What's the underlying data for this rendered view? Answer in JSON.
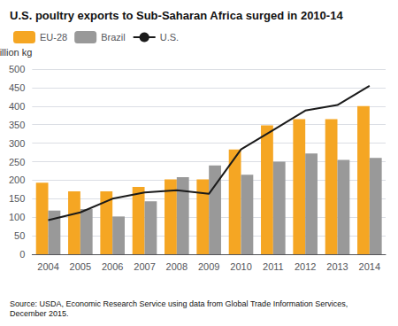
{
  "chart_data": {
    "type": "bar",
    "title": "U.S. poultry exports to Sub-Saharan Africa surged in 2010-14",
    "ylabel": "Million kg",
    "source": "Source: USDA, Economic Research Service using data from Global Trade Information Services,\nDecember 2015.",
    "categories": [
      "2004",
      "2005",
      "2006",
      "2007",
      "2008",
      "2009",
      "2010",
      "2011",
      "2012",
      "2013",
      "2014"
    ],
    "series": [
      {
        "name": "EU-28",
        "type": "bar",
        "color": "#F5A623",
        "values": [
          193,
          170,
          170,
          182,
          202,
          202,
          283,
          348,
          365,
          365,
          400
        ]
      },
      {
        "name": "Brazil",
        "type": "bar",
        "color": "#999999",
        "values": [
          118,
          122,
          102,
          143,
          208,
          240,
          215,
          250,
          272,
          255,
          260
        ]
      },
      {
        "name": "U.S.",
        "type": "line",
        "color": "#1a1a1a",
        "values": [
          92,
          113,
          150,
          167,
          173,
          163,
          283,
          335,
          388,
          403,
          455
        ]
      }
    ],
    "ylim": [
      0,
      500
    ],
    "yticks": [
      0,
      50,
      100,
      150,
      200,
      250,
      300,
      350,
      400,
      450,
      500
    ],
    "grid": true,
    "legend": "upper left"
  }
}
